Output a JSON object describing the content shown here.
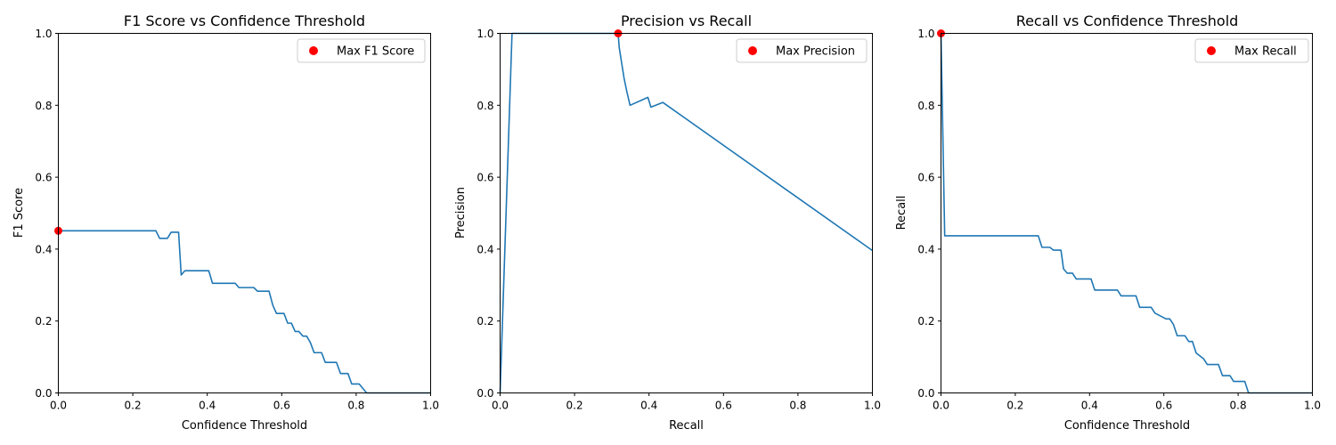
{
  "chart_data": [
    {
      "type": "line",
      "title": "F1 Score vs Confidence Threshold",
      "xlabel": "Confidence Threshold",
      "ylabel": "F1 Score",
      "xlim": [
        0,
        1
      ],
      "ylim": [
        0,
        1
      ],
      "xticks": [
        "0.0",
        "0.2",
        "0.4",
        "0.6",
        "0.8",
        "1.0"
      ],
      "yticks": [
        "0.0",
        "0.2",
        "0.4",
        "0.6",
        "0.8",
        "1.0"
      ],
      "grid": false,
      "legend_position": "top-right",
      "line_color": "#1f77b4",
      "marker_color": "#ff0000",
      "series": [
        {
          "x": [
            0.0,
            0.262,
            0.272,
            0.293,
            0.303,
            0.323,
            0.33,
            0.34,
            0.404,
            0.414,
            0.475,
            0.485,
            0.525,
            0.535,
            0.566,
            0.576,
            0.586,
            0.606,
            0.616,
            0.626,
            0.636,
            0.646,
            0.657,
            0.667,
            0.677,
            0.687,
            0.707,
            0.717,
            0.747,
            0.758,
            0.778,
            0.788,
            0.808,
            0.828,
            0.838,
            1.0
          ],
          "y": [
            0.451,
            0.451,
            0.43,
            0.43,
            0.447,
            0.447,
            0.328,
            0.34,
            0.34,
            0.305,
            0.305,
            0.293,
            0.293,
            0.283,
            0.283,
            0.244,
            0.221,
            0.221,
            0.194,
            0.194,
            0.171,
            0.171,
            0.158,
            0.158,
            0.14,
            0.112,
            0.112,
            0.085,
            0.085,
            0.054,
            0.054,
            0.025,
            0.025,
            0.0,
            0.0,
            0.0
          ]
        }
      ],
      "points": [
        {
          "x": 0.0,
          "y": 0.451
        }
      ],
      "legend": [
        "Max F1 Score"
      ]
    },
    {
      "type": "line",
      "title": "Precision vs Recall",
      "xlabel": "Recall",
      "ylabel": "Precision",
      "xlim": [
        0,
        1
      ],
      "ylim": [
        0,
        1
      ],
      "xticks": [
        "0.0",
        "0.2",
        "0.4",
        "0.6",
        "0.8",
        "1.0"
      ],
      "yticks": [
        "0.0",
        "0.2",
        "0.4",
        "0.6",
        "0.8",
        "1.0"
      ],
      "grid": false,
      "legend_position": "top-right",
      "line_color": "#1f77b4",
      "marker_color": "#ff0000",
      "series": [
        {
          "x": [
            0.0,
            0.032,
            0.317,
            0.32,
            0.333,
            0.34,
            0.349,
            0.397,
            0.405,
            0.437,
            1.0
          ],
          "y": [
            0.0,
            1.0,
            1.0,
            0.96,
            0.875,
            0.84,
            0.8,
            0.822,
            0.795,
            0.808,
            0.396
          ]
        }
      ],
      "points": [
        {
          "x": 0.317,
          "y": 1.0
        }
      ],
      "legend": [
        "Max Precision"
      ]
    },
    {
      "type": "line",
      "title": "Recall vs Confidence Threshold",
      "xlabel": "Confidence Threshold",
      "ylabel": "Recall",
      "xlim": [
        0,
        1
      ],
      "ylim": [
        0,
        1
      ],
      "xticks": [
        "0.0",
        "0.2",
        "0.4",
        "0.6",
        "0.8",
        "1.0"
      ],
      "yticks": [
        "0.0",
        "0.2",
        "0.4",
        "0.6",
        "0.8",
        "1.0"
      ],
      "grid": false,
      "legend_position": "top-right",
      "line_color": "#1f77b4",
      "marker_color": "#ff0000",
      "series": [
        {
          "x": [
            0.0,
            0.01,
            0.262,
            0.272,
            0.293,
            0.303,
            0.323,
            0.33,
            0.34,
            0.354,
            0.364,
            0.404,
            0.414,
            0.475,
            0.485,
            0.525,
            0.535,
            0.566,
            0.576,
            0.606,
            0.616,
            0.626,
            0.636,
            0.657,
            0.667,
            0.677,
            0.687,
            0.707,
            0.717,
            0.747,
            0.758,
            0.778,
            0.788,
            0.818,
            0.828,
            1.0
          ],
          "y": [
            1.0,
            0.437,
            0.437,
            0.405,
            0.405,
            0.397,
            0.397,
            0.345,
            0.333,
            0.333,
            0.317,
            0.317,
            0.286,
            0.286,
            0.27,
            0.27,
            0.238,
            0.238,
            0.222,
            0.206,
            0.206,
            0.19,
            0.159,
            0.159,
            0.143,
            0.143,
            0.111,
            0.095,
            0.079,
            0.079,
            0.048,
            0.048,
            0.032,
            0.032,
            0.0,
            0.0
          ]
        }
      ],
      "points": [
        {
          "x": 0.0,
          "y": 1.0
        }
      ],
      "legend": [
        "Max Recall"
      ]
    }
  ]
}
